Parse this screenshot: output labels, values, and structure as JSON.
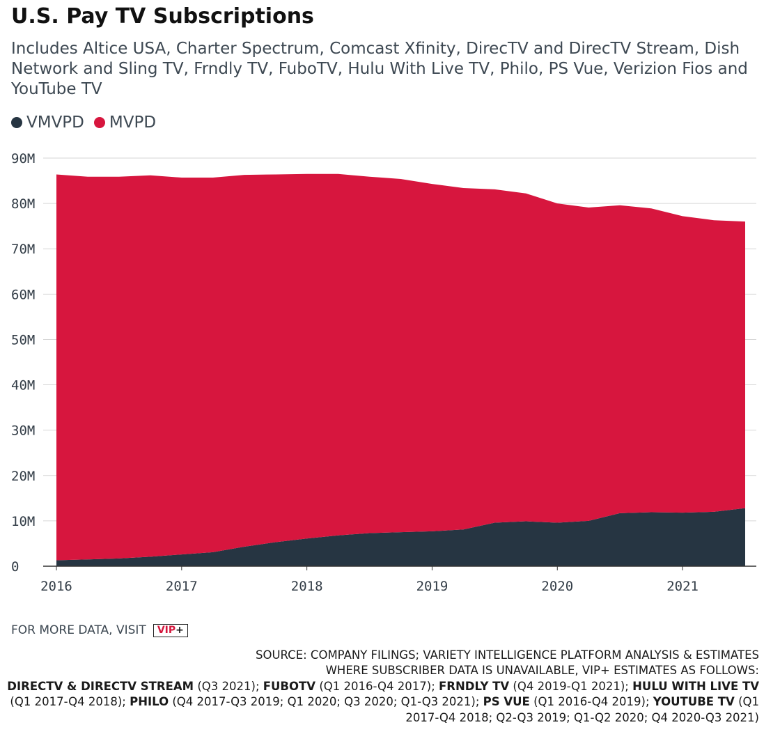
{
  "title": "U.S. Pay TV Subscriptions",
  "subtitle": "Includes Altice USA, Charter Spectrum, Comcast Xfinity, DirecTV and DirecTV Stream, Dish Network and Sling TV, Frndly TV, FuboTV, Hulu With Live TV, Philo, PS Vue, Verizion Fios and YouTube TV",
  "legend": [
    {
      "label": "VMVPD",
      "color": "#263542"
    },
    {
      "label": "MVPD",
      "color": "#d7163e"
    }
  ],
  "footer": {
    "visit_text": "FOR MORE DATA, VISIT",
    "vip_text": "VIP",
    "vip_plus": "+"
  },
  "source": {
    "line1": "SOURCE: COMPANY FILINGS; VARIETY INTELLIGENCE PLATFORM ANALYSIS & ESTIMATES",
    "line2": "WHERE SUBSCRIBER DATA IS UNAVAILABLE, VIP+ ESTIMATES AS FOLLOWS:",
    "notes": [
      {
        "name": "DIRECTV & DIRECTV STREAM",
        "detail": " (Q3 2021); "
      },
      {
        "name": "FUBOTV",
        "detail": " (Q1 2016-Q4 2017); "
      },
      {
        "name": "FRNDLY TV",
        "detail": " (Q4 2019-Q1 2021); "
      },
      {
        "name": "HULU WITH LIVE TV",
        "detail": " (Q1 2017-Q4 2018); "
      },
      {
        "name": "PHILO",
        "detail": " (Q4 2017-Q3 2019; Q1 2020; Q3 2020; Q1-Q3 2021); "
      },
      {
        "name": "PS VUE",
        "detail": " (Q1 2016-Q4 2019); "
      },
      {
        "name": "YOUTUBE TV",
        "detail": " (Q1 2017-Q4 2018; Q2-Q3 2019; Q1-Q2 2020; Q4 2020-Q3 2021)"
      }
    ]
  },
  "chart_data": {
    "type": "area",
    "stacked": true,
    "x": [
      "Q1 2016",
      "Q2 2016",
      "Q3 2016",
      "Q4 2016",
      "Q1 2017",
      "Q2 2017",
      "Q3 2017",
      "Q4 2017",
      "Q1 2018",
      "Q2 2018",
      "Q3 2018",
      "Q4 2018",
      "Q1 2019",
      "Q2 2019",
      "Q3 2019",
      "Q4 2019",
      "Q1 2020",
      "Q2 2020",
      "Q3 2020",
      "Q4 2020",
      "Q1 2021",
      "Q2 2021",
      "Q3 2021"
    ],
    "x_tick_labels": [
      "2016",
      "2017",
      "2018",
      "2019",
      "2020",
      "2021"
    ],
    "y_tick_labels": [
      "0",
      "10M",
      "20M",
      "30M",
      "40M",
      "50M",
      "60M",
      "70M",
      "80M",
      "90M"
    ],
    "ylim": [
      0,
      90
    ],
    "y_unit": "M",
    "grid": true,
    "legend_position": "top-left",
    "series": [
      {
        "name": "VMVPD",
        "color": "#263542",
        "values": [
          1.3,
          1.5,
          1.7,
          2.1,
          2.6,
          3.1,
          4.3,
          5.3,
          6.1,
          6.8,
          7.3,
          7.5,
          7.7,
          8.1,
          9.6,
          9.9,
          9.6,
          10.0,
          11.7,
          11.9,
          11.8,
          12.0,
          12.8
        ]
      },
      {
        "name": "MVPD",
        "color": "#d7163e",
        "values": [
          85.1,
          84.4,
          84.2,
          84.1,
          83.1,
          82.6,
          82.0,
          81.1,
          80.4,
          79.7,
          78.6,
          77.9,
          76.6,
          75.3,
          73.5,
          72.3,
          70.4,
          69.1,
          67.9,
          67.0,
          65.4,
          64.3,
          63.2
        ]
      }
    ]
  }
}
